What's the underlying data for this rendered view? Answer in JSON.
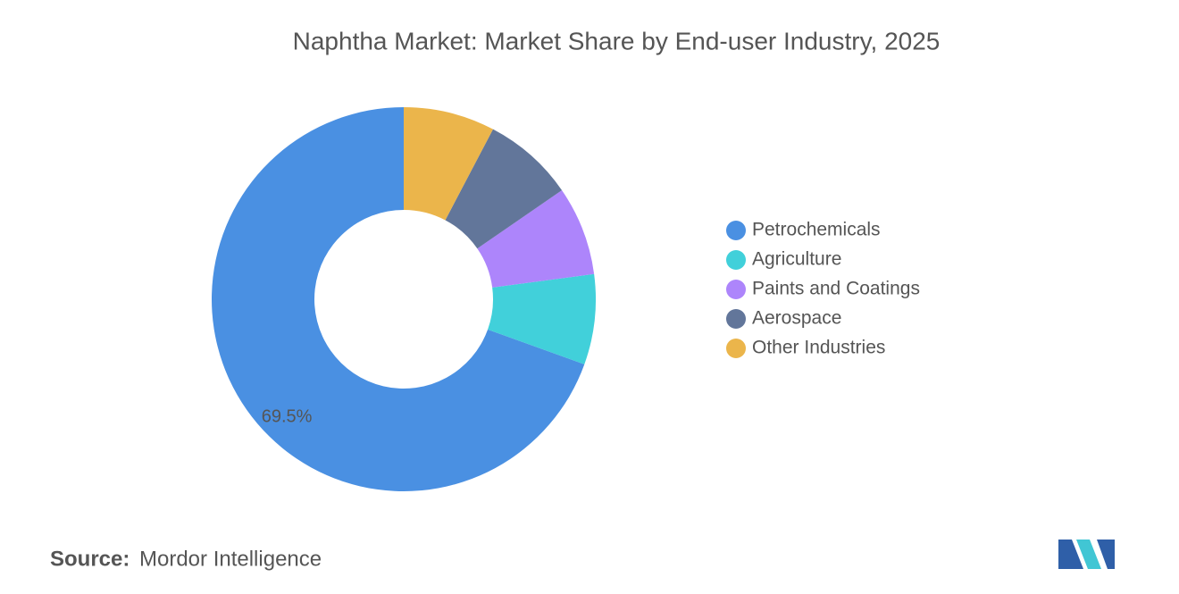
{
  "chart_data": {
    "type": "donut",
    "title": "Naphtha Market: Market Share by End-user Industry, 2025",
    "categories": [
      "Petrochemicals",
      "Agriculture",
      "Paints and Coatings",
      "Aerospace",
      "Other Industries"
    ],
    "values": [
      69.5,
      7.6,
      7.5,
      7.7,
      7.7
    ],
    "value_labels": [
      "69.5%",
      null,
      null,
      null,
      null
    ],
    "colors": [
      "#4a90e2",
      "#41d0da",
      "#ad85fb",
      "#62769a",
      "#ebb54b"
    ],
    "legend": "right"
  },
  "source_label": "Source:",
  "source": "Mordor Intelligence"
}
